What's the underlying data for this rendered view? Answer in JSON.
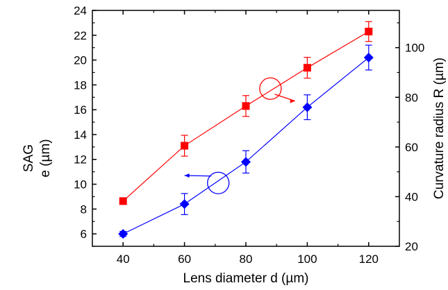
{
  "chart_data": {
    "type": "line",
    "title": "",
    "xlabel": "Lens diameter d (µm)",
    "ylabel_left": [
      "SAG",
      "e (µm)"
    ],
    "ylabel_right": "Curvature radius R (µm)",
    "xlim": [
      30,
      130
    ],
    "ylim_left": [
      5,
      24
    ],
    "ylim_right": [
      20,
      115
    ],
    "x_ticks": [
      40,
      60,
      80,
      100,
      120
    ],
    "y_ticks_left": [
      6,
      8,
      10,
      12,
      14,
      16,
      18,
      20,
      22,
      24
    ],
    "y_ticks_right": [
      20,
      40,
      60,
      80,
      100
    ],
    "grid": false,
    "legend": "none",
    "series": [
      {
        "axis": "right",
        "marker": "square",
        "color": "#ff0000",
        "x": [
          40,
          60,
          80,
          100,
          120
        ],
        "y": [
          38.2,
          60.5,
          76.5,
          91.9,
          106.5
        ],
        "err": [
          0.8,
          4.2,
          4.2,
          4.2,
          4.0
        ]
      },
      {
        "axis": "left",
        "marker": "diamond",
        "color": "#0000ff",
        "x": [
          40,
          60,
          80,
          100,
          120
        ],
        "y": [
          6.0,
          8.4,
          11.8,
          16.2,
          20.2
        ],
        "err": [
          0.2,
          0.85,
          0.9,
          1.0,
          1.0
        ]
      }
    ],
    "annotations": [
      {
        "series_axis": "right",
        "circle_at": [
          88,
          83.5
        ],
        "arrow_to": [
          96,
          78.5
        ]
      },
      {
        "series_axis": "left",
        "circle_at": [
          71,
          10.1
        ],
        "arrow_to": [
          60,
          10.7
        ]
      }
    ]
  }
}
